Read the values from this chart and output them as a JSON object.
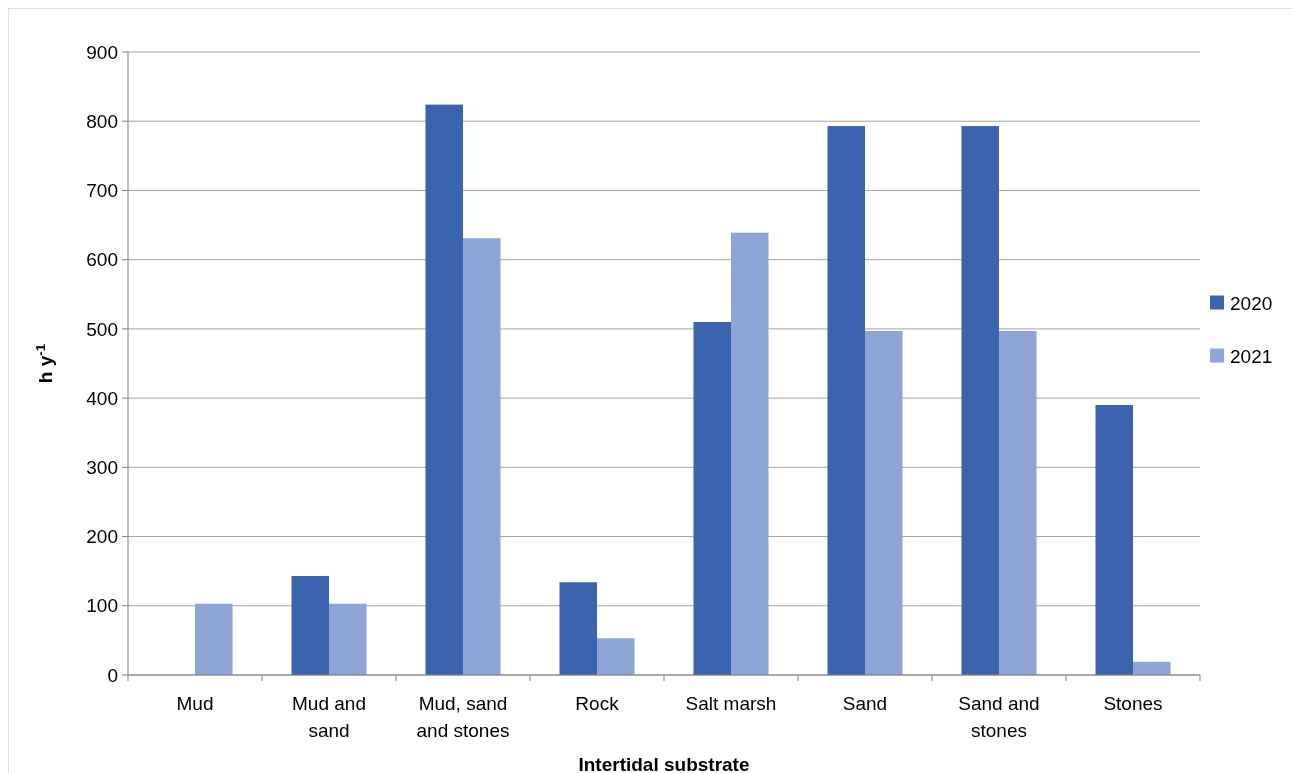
{
  "chart_data": {
    "type": "bar",
    "xlabel": "Intertidal substrate",
    "ylabel": "h y$^{-1}$",
    "categories": [
      "Mud",
      "Mud and sand",
      "Mud, sand and stones",
      "Rock",
      "Salt marsh",
      "Sand",
      "Sand and stones",
      "Stones"
    ],
    "series": [
      {
        "name": "2020",
        "color": "#3a64ad",
        "values": [
          null,
          143,
          824,
          134,
          510,
          793,
          793,
          390
        ]
      },
      {
        "name": "2021",
        "color": "#8ea5d6",
        "values": [
          103,
          103,
          631,
          53,
          639,
          497,
          497,
          19
        ]
      }
    ],
    "ylim": [
      0,
      900
    ],
    "yticks": [
      0,
      100,
      200,
      300,
      400,
      500,
      600,
      700,
      800,
      900
    ],
    "grid": "y",
    "legend": "right"
  }
}
